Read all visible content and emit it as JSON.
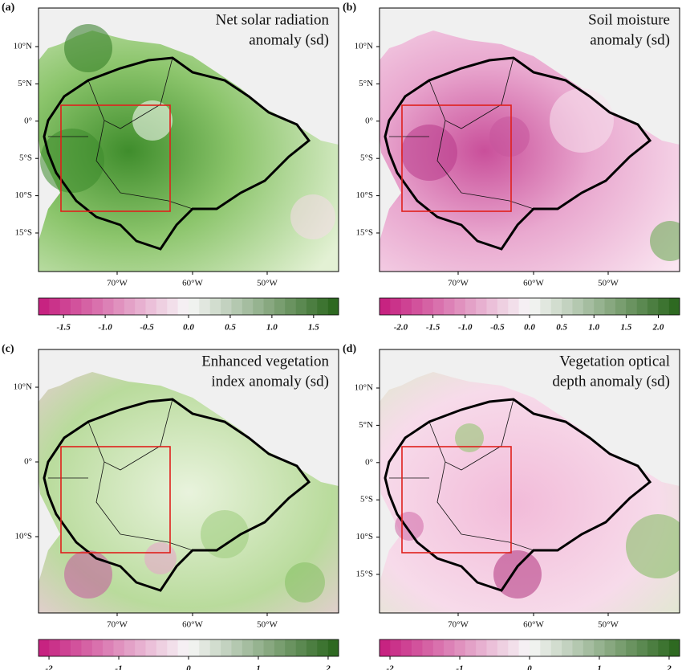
{
  "panels": [
    {
      "label": "(a)",
      "title": [
        "Net solar radiation",
        "anomaly (sd)"
      ],
      "lat_labels": [
        "10°N",
        "5°N",
        "0°",
        "5°S",
        "10°S",
        "15°S"
      ],
      "lon_labels": [
        "70°W",
        "60°W",
        "50°W"
      ],
      "colorbar": {
        "clim": [
          -1.8,
          1.8
        ],
        "ticks": [
          -1.5,
          {
            "value": -1,
            "label": "-1.0"
          },
          -0.5,
          {
            "value": 0,
            "label": "0.0"
          },
          0.5,
          {
            "value": 1,
            "label": "1.0"
          },
          1.5
        ]
      }
    },
    {
      "label": "(b)",
      "title": [
        "Soil moisture",
        "anomaly (sd)"
      ],
      "lat_labels": [
        "10°N",
        "5°N",
        "0°",
        "5°S",
        "10°S",
        "15°S"
      ],
      "lon_labels": [
        "70°W",
        "60°W",
        "50°W"
      ],
      "colorbar": {
        "clim": [
          -2.33,
          2.33
        ],
        "ticks": [
          {
            "value": -2,
            "label": "-2.0"
          },
          -1.5,
          {
            "value": -1,
            "label": "-1.0"
          },
          -0.5,
          {
            "value": 0,
            "label": "0.0"
          },
          0.5,
          {
            "value": 1,
            "label": "1.0"
          },
          1.5,
          {
            "value": 2,
            "label": "2.0"
          }
        ]
      }
    },
    {
      "label": "(c)",
      "title": [
        "Enhanced vegetation",
        "index anomaly (sd)"
      ],
      "lat_labels": [
        "10°N",
        "0°",
        "10°S"
      ],
      "lon_labels": [
        "70°W",
        "60°W",
        "50°W"
      ],
      "colorbar": {
        "clim": [
          -2.15,
          2.15
        ],
        "ticks": [
          -2,
          -1,
          0,
          1,
          2
        ]
      }
    },
    {
      "label": "(d)",
      "title": [
        "Vegetation optical",
        "depth anomaly (sd)"
      ],
      "lat_labels": [
        "10°N",
        "5°N",
        "0°",
        "5°S",
        "10°S",
        "15°S"
      ],
      "lon_labels": [
        "70°W",
        "60°W",
        "50°W"
      ],
      "colorbar": {
        "clim": [
          -2.15,
          2.15
        ],
        "ticks": [
          -2,
          -1,
          0,
          1,
          2
        ]
      }
    }
  ]
}
